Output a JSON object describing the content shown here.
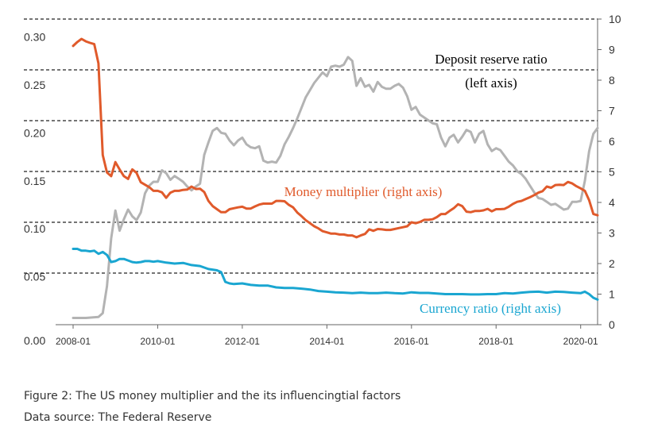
{
  "chart_data": {
    "type": "line",
    "title": "",
    "xlabel": "",
    "x_tick_labels": [
      "2008-01",
      "2010-01",
      "2012-01",
      "2014-01",
      "2016-01",
      "2018-01",
      "2020-01"
    ],
    "x_range": [
      2008.0,
      2020.4
    ],
    "left_axis": {
      "ylim": [
        0.0,
        0.3
      ],
      "ticks": [
        0.0,
        0.05,
        0.1,
        0.15,
        0.2,
        0.25,
        0.3
      ],
      "tick_labels": [
        "0.00",
        "0.05",
        "0.10",
        "0.15",
        "0.20",
        "0.25",
        "0.30"
      ]
    },
    "right_axis": {
      "ylim": [
        0,
        10
      ],
      "ticks": [
        0,
        1,
        2,
        3,
        4,
        5,
        6,
        7,
        8,
        9,
        10
      ],
      "tick_labels": [
        "0",
        "1",
        "2",
        "3",
        "4",
        "5",
        "6",
        "7",
        "8",
        "9",
        "10"
      ]
    },
    "gridlines": "dashed horizontal",
    "series": [
      {
        "name": "Deposit reserve ratio",
        "axis": "left",
        "color": "#b3b3b3",
        "x": [
          2008.0,
          2008.3,
          2008.6,
          2008.7,
          2008.8,
          2008.9,
          2009.0,
          2009.1,
          2009.2,
          2009.3,
          2009.4,
          2009.5,
          2009.6,
          2009.7,
          2009.8,
          2009.9,
          2010.0,
          2010.1,
          2010.2,
          2010.3,
          2010.4,
          2010.5,
          2010.6,
          2010.7,
          2010.8,
          2010.9,
          2011.0,
          2011.1,
          2011.2,
          2011.3,
          2011.4,
          2011.5,
          2011.6,
          2011.7,
          2011.8,
          2011.9,
          2012.0,
          2012.1,
          2012.2,
          2012.3,
          2012.4,
          2012.5,
          2012.6,
          2012.7,
          2012.8,
          2012.9,
          2013.0,
          2013.1,
          2013.2,
          2013.3,
          2013.5,
          2013.7,
          2013.9,
          2014.0,
          2014.1,
          2014.2,
          2014.3,
          2014.4,
          2014.5,
          2014.6,
          2014.7,
          2014.8,
          2014.9,
          2015.0,
          2015.1,
          2015.2,
          2015.3,
          2015.4,
          2015.5,
          2015.6,
          2015.7,
          2015.8,
          2015.9,
          2016.0,
          2016.1,
          2016.2,
          2016.3,
          2016.4,
          2016.5,
          2016.6,
          2016.7,
          2016.8,
          2016.9,
          2017.0,
          2017.1,
          2017.2,
          2017.3,
          2017.4,
          2017.5,
          2017.6,
          2017.7,
          2017.8,
          2017.9,
          2018.0,
          2018.1,
          2018.2,
          2018.3,
          2018.4,
          2018.5,
          2018.6,
          2018.7,
          2018.8,
          2018.9,
          2019.0,
          2019.1,
          2019.2,
          2019.3,
          2019.4,
          2019.5,
          2019.6,
          2019.7,
          2019.8,
          2019.9,
          2020.0,
          2020.1,
          2020.2,
          2020.3,
          2020.4
        ],
        "values": [
          0.007,
          0.007,
          0.008,
          0.012,
          0.04,
          0.09,
          0.119,
          0.098,
          0.11,
          0.12,
          0.113,
          0.109,
          0.117,
          0.137,
          0.145,
          0.149,
          0.149,
          0.161,
          0.158,
          0.151,
          0.155,
          0.152,
          0.149,
          0.144,
          0.14,
          0.144,
          0.147,
          0.177,
          0.19,
          0.202,
          0.205,
          0.2,
          0.199,
          0.192,
          0.187,
          0.192,
          0.195,
          0.188,
          0.185,
          0.184,
          0.186,
          0.171,
          0.169,
          0.17,
          0.169,
          0.176,
          0.188,
          0.196,
          0.205,
          0.215,
          0.237,
          0.252,
          0.263,
          0.259,
          0.269,
          0.27,
          0.269,
          0.271,
          0.279,
          0.275,
          0.249,
          0.257,
          0.248,
          0.25,
          0.243,
          0.253,
          0.248,
          0.246,
          0.246,
          0.249,
          0.251,
          0.247,
          0.238,
          0.224,
          0.227,
          0.219,
          0.216,
          0.213,
          0.21,
          0.209,
          0.195,
          0.186,
          0.195,
          0.198,
          0.19,
          0.196,
          0.203,
          0.201,
          0.19,
          0.199,
          0.202,
          0.188,
          0.181,
          0.184,
          0.182,
          0.176,
          0.17,
          0.166,
          0.16,
          0.157,
          0.152,
          0.145,
          0.138,
          0.132,
          0.131,
          0.128,
          0.125,
          0.126,
          0.123,
          0.12,
          0.121,
          0.128,
          0.128,
          0.129,
          0.15,
          0.181,
          0.199,
          0.205
        ]
      },
      {
        "name": "Money multiplier",
        "axis": "right",
        "color": "#e05a2b",
        "x": [
          2008.0,
          2008.1,
          2008.2,
          2008.3,
          2008.4,
          2008.5,
          2008.6,
          2008.7,
          2008.8,
          2008.9,
          2009.0,
          2009.1,
          2009.2,
          2009.3,
          2009.4,
          2009.5,
          2009.6,
          2009.7,
          2009.8,
          2009.9,
          2010.0,
          2010.1,
          2010.2,
          2010.3,
          2010.4,
          2010.5,
          2010.6,
          2010.7,
          2010.8,
          2010.9,
          2011.0,
          2011.1,
          2011.2,
          2011.3,
          2011.4,
          2011.5,
          2011.6,
          2011.7,
          2011.8,
          2011.9,
          2012.0,
          2012.1,
          2012.2,
          2012.3,
          2012.4,
          2012.5,
          2012.6,
          2012.7,
          2012.8,
          2012.9,
          2013.0,
          2013.1,
          2013.2,
          2013.3,
          2013.4,
          2013.5,
          2013.6,
          2013.7,
          2013.8,
          2013.9,
          2014.0,
          2014.1,
          2014.2,
          2014.3,
          2014.4,
          2014.5,
          2014.6,
          2014.7,
          2014.8,
          2014.9,
          2015.0,
          2015.1,
          2015.2,
          2015.3,
          2015.4,
          2015.5,
          2015.6,
          2015.7,
          2015.8,
          2015.9,
          2016.0,
          2016.1,
          2016.2,
          2016.3,
          2016.4,
          2016.5,
          2016.6,
          2016.7,
          2016.8,
          2016.9,
          2017.0,
          2017.1,
          2017.2,
          2017.3,
          2017.4,
          2017.5,
          2017.6,
          2017.7,
          2017.8,
          2017.9,
          2018.0,
          2018.1,
          2018.2,
          2018.3,
          2018.4,
          2018.5,
          2018.6,
          2018.7,
          2018.8,
          2018.9,
          2019.0,
          2019.1,
          2019.2,
          2019.3,
          2019.4,
          2019.5,
          2019.6,
          2019.7,
          2019.8,
          2019.9,
          2020.0,
          2020.1,
          2020.2,
          2020.3,
          2020.4
        ],
        "values": [
          9.12,
          9.25,
          9.35,
          9.27,
          9.22,
          9.18,
          8.55,
          5.55,
          4.98,
          4.86,
          5.32,
          5.08,
          4.86,
          4.77,
          5.08,
          4.97,
          4.66,
          4.58,
          4.5,
          4.38,
          4.38,
          4.33,
          4.15,
          4.32,
          4.38,
          4.38,
          4.41,
          4.42,
          4.52,
          4.44,
          4.45,
          4.34,
          4.05,
          3.88,
          3.78,
          3.68,
          3.68,
          3.78,
          3.81,
          3.84,
          3.86,
          3.8,
          3.8,
          3.87,
          3.93,
          3.96,
          3.96,
          3.96,
          4.05,
          4.05,
          4.04,
          3.92,
          3.84,
          3.67,
          3.55,
          3.42,
          3.32,
          3.22,
          3.15,
          3.06,
          3.02,
          2.98,
          2.98,
          2.95,
          2.95,
          2.92,
          2.92,
          2.86,
          2.92,
          2.97,
          3.12,
          3.07,
          3.13,
          3.12,
          3.1,
          3.1,
          3.13,
          3.16,
          3.19,
          3.22,
          3.35,
          3.32,
          3.36,
          3.43,
          3.43,
          3.45,
          3.52,
          3.62,
          3.62,
          3.72,
          3.81,
          3.94,
          3.88,
          3.7,
          3.68,
          3.72,
          3.72,
          3.74,
          3.79,
          3.71,
          3.78,
          3.78,
          3.79,
          3.86,
          3.95,
          4.02,
          4.05,
          4.11,
          4.17,
          4.24,
          4.32,
          4.37,
          4.52,
          4.48,
          4.57,
          4.58,
          4.57,
          4.67,
          4.62,
          4.53,
          4.46,
          4.38,
          4.07,
          3.62,
          3.58
        ]
      },
      {
        "name": "Currency ratio",
        "axis": "right",
        "color": "#1aa6d1",
        "x": [
          2008.0,
          2008.1,
          2008.2,
          2008.3,
          2008.4,
          2008.5,
          2008.6,
          2008.7,
          2008.8,
          2008.9,
          2009.0,
          2009.1,
          2009.2,
          2009.3,
          2009.4,
          2009.5,
          2009.6,
          2009.7,
          2009.8,
          2009.9,
          2010.0,
          2010.2,
          2010.4,
          2010.6,
          2010.8,
          2011.0,
          2011.2,
          2011.4,
          2011.5,
          2011.6,
          2011.7,
          2011.8,
          2012.0,
          2012.2,
          2012.4,
          2012.6,
          2012.8,
          2013.0,
          2013.2,
          2013.4,
          2013.6,
          2013.8,
          2014.0,
          2014.2,
          2014.4,
          2014.6,
          2014.8,
          2015.0,
          2015.2,
          2015.4,
          2015.6,
          2015.8,
          2016.0,
          2016.2,
          2016.4,
          2016.6,
          2016.8,
          2017.0,
          2017.2,
          2017.4,
          2017.6,
          2017.8,
          2018.0,
          2018.2,
          2018.4,
          2018.6,
          2018.8,
          2019.0,
          2019.2,
          2019.4,
          2019.6,
          2019.8,
          2020.0,
          2020.1,
          2020.2,
          2020.3,
          2020.4
        ],
        "values": [
          2.48,
          2.48,
          2.42,
          2.42,
          2.4,
          2.42,
          2.32,
          2.38,
          2.28,
          2.05,
          2.08,
          2.15,
          2.15,
          2.1,
          2.05,
          2.03,
          2.05,
          2.08,
          2.08,
          2.06,
          2.08,
          2.03,
          2.0,
          2.02,
          1.95,
          1.92,
          1.82,
          1.78,
          1.72,
          1.4,
          1.35,
          1.33,
          1.35,
          1.3,
          1.28,
          1.28,
          1.22,
          1.2,
          1.2,
          1.18,
          1.15,
          1.1,
          1.08,
          1.06,
          1.05,
          1.03,
          1.05,
          1.03,
          1.03,
          1.05,
          1.03,
          1.02,
          1.06,
          1.04,
          1.04,
          1.02,
          1.0,
          1.0,
          1.0,
          0.99,
          0.99,
          1.0,
          1.0,
          1.03,
          1.02,
          1.05,
          1.07,
          1.08,
          1.05,
          1.08,
          1.07,
          1.05,
          1.03,
          1.08,
          1.0,
          0.88,
          0.82
        ]
      }
    ],
    "annotations": [
      {
        "text_lines": [
          "Deposit reserve ratio",
          "(left axis)"
        ],
        "series": "Deposit reserve ratio"
      },
      {
        "text_lines": [
          "Money multiplier (right axis)"
        ],
        "series": "Money multiplier"
      },
      {
        "text_lines": [
          "Currency ratio (right axis)"
        ],
        "series": "Currency ratio"
      }
    ]
  },
  "caption": {
    "figure": "Figure 2: The US money multiplier and the its influencingtial factors",
    "source": "Data source: The Federal Reserve"
  }
}
